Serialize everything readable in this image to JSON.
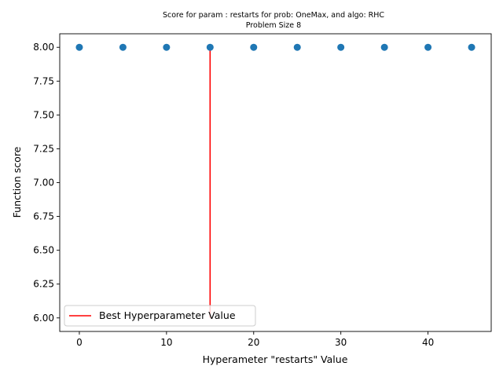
{
  "chart_data": {
    "type": "scatter",
    "title": "Score for param : restarts for prob: OneMax, and algo: RHC",
    "subtitle": "Problem Size 8",
    "xlabel": "Hyperameter \"restarts\" Value",
    "ylabel": "Function score",
    "xlim": [
      -2.25,
      47.25
    ],
    "ylim": [
      5.9,
      8.1
    ],
    "x_ticks": [
      0,
      10,
      20,
      30,
      40
    ],
    "y_ticks": [
      6.0,
      6.25,
      6.5,
      6.75,
      7.0,
      7.25,
      7.5,
      7.75,
      8.0
    ],
    "y_tick_labels": [
      "6.00",
      "6.25",
      "6.50",
      "6.75",
      "7.00",
      "7.25",
      "7.50",
      "7.75",
      "8.00"
    ],
    "grid": false,
    "legend_placement": "lower-left",
    "series": [
      {
        "x": [
          0,
          5,
          10,
          15,
          20,
          25,
          30,
          35,
          40,
          45
        ],
        "y": [
          8,
          8,
          8,
          8,
          8,
          8,
          8,
          8,
          8,
          8
        ],
        "color": "#1f77b4"
      }
    ],
    "best_line": {
      "label": "Best Hyperparameter Value",
      "x": 15,
      "y_start": 6.0,
      "y_end": 8.0,
      "color": "#ff0000"
    }
  }
}
